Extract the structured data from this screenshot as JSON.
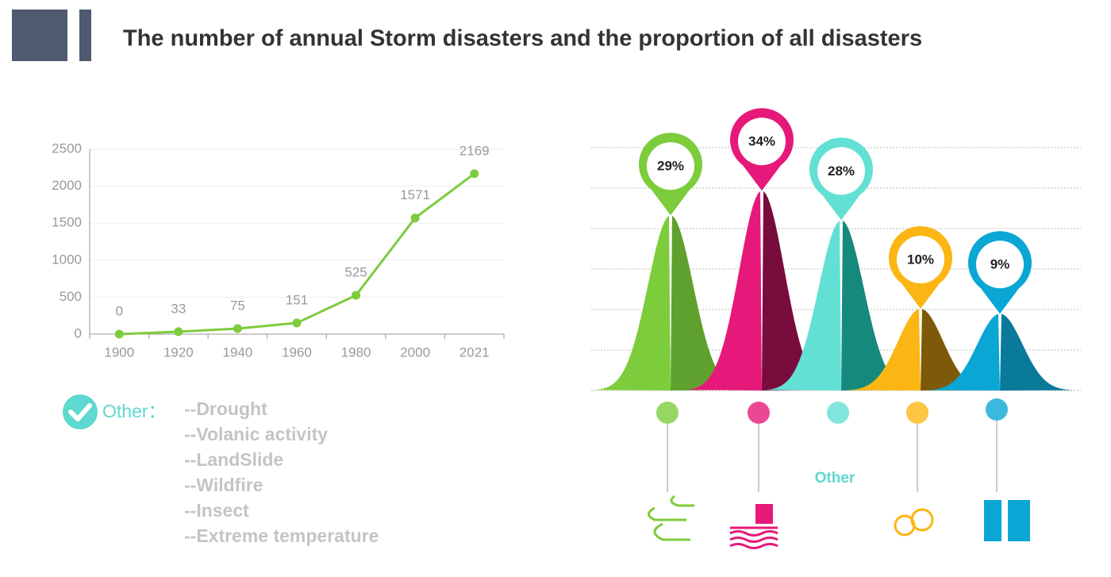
{
  "title": "The number of annual Storm disasters and the proportion of all disasters",
  "chart_data": [
    {
      "type": "line",
      "categories": [
        "1900",
        "1920",
        "1940",
        "1960",
        "1980",
        "2000",
        "2021"
      ],
      "values": [
        0,
        33,
        75,
        151,
        525,
        1571,
        2169
      ],
      "color": "#7dcc3c",
      "ylim": [
        0,
        2500
      ],
      "yticks": [
        0,
        500,
        1000,
        1500,
        2000,
        2500
      ],
      "grid": true
    },
    {
      "type": "bell",
      "categories": [
        null,
        null,
        "Other",
        null,
        null
      ],
      "values": [
        29,
        34,
        28,
        10,
        9
      ],
      "value_labels": [
        "29%",
        "34%",
        "28%",
        "10%",
        "9%"
      ],
      "colors": [
        "#7dcc3c",
        "#e6197a",
        "#63e0d4",
        "#fbb614",
        "#0aa6d4"
      ],
      "dark_colors": [
        "#5ea12e",
        "#780c3c",
        "#16897d",
        "#7d5a0a",
        "#0a7a9a"
      ]
    }
  ],
  "other": {
    "label": "Other：",
    "items": [
      "--Drought",
      "--Volanic activity",
      "--LandSlide",
      "--Wildfire",
      "--Insect",
      "--Extreme temperature"
    ]
  }
}
